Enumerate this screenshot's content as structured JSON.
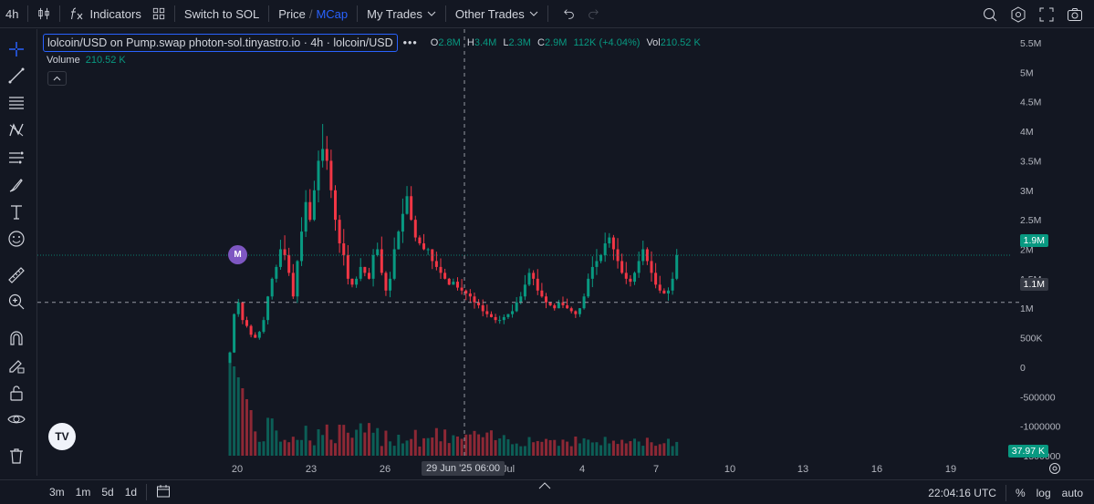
{
  "toolbar": {
    "interval": "4h",
    "indicators_label": "Indicators",
    "switch_label": "Switch to SOL",
    "price_label": "Price",
    "price_sep": "/",
    "mcap_label": "MCap",
    "my_trades_label": "My Trades",
    "other_trades_label": "Other Trades"
  },
  "legend": {
    "title": "lolcoin/USD on Pump.swap photon-sol.tinyastro.io · 4h · lolcoin/USD",
    "more": "•••",
    "o_label": "O",
    "o_value": "2.8M",
    "h_label": "H",
    "h_value": "3.4M",
    "l_label": "L",
    "l_value": "2.3M",
    "c_label": "C",
    "c_value": "2.9M",
    "change": "112K (+4.04%)",
    "vol_label": "Vol",
    "vol_value": "210.52 K"
  },
  "volume_legend": {
    "label": "Volume",
    "value": "210.52 K"
  },
  "markers": {
    "m": "M"
  },
  "logo_text": "TV",
  "badges": {
    "last_price": "1.9M",
    "crosshair_price": "1.1M",
    "volume": "37.97 K"
  },
  "crosshair_date": "29 Jun '25   06:00",
  "bottom": {
    "ranges": [
      "3m",
      "1m",
      "5d",
      "1d"
    ],
    "time": "22:04:16 UTC",
    "percent": "%",
    "log": "log",
    "auto": "auto"
  },
  "colors": {
    "up": "#089981",
    "down": "#f23645",
    "accent": "#2962ff",
    "bg": "#131722"
  },
  "chart_data": {
    "type": "candlestick",
    "title": "lolcoin/USD",
    "interval": "4h",
    "y_ticks": [
      "5.5M",
      "5M",
      "4.5M",
      "4M",
      "3.5M",
      "3M",
      "2.5M",
      "2M",
      "1.5M",
      "1M",
      "500K",
      "0",
      "-500000",
      "-1000000",
      "-1500000"
    ],
    "y_tick_values": [
      5500000,
      5000000,
      4500000,
      4000000,
      3500000,
      3000000,
      2500000,
      2000000,
      1500000,
      1000000,
      500000,
      0,
      -500000,
      -1000000,
      -1500000
    ],
    "x_ticks": [
      "20",
      "23",
      "26",
      "Jul",
      "4",
      "7",
      "10",
      "13",
      "16",
      "19"
    ],
    "last_price": 1900000,
    "crosshair_price": 1100000,
    "series_close_approx": [
      0.25,
      0.9,
      1.1,
      0.8,
      0.7,
      0.55,
      0.5,
      0.6,
      0.8,
      1.2,
      1.5,
      1.7,
      2.0,
      1.9,
      1.6,
      1.2,
      1.8,
      2.3,
      2.8,
      2.5,
      3.0,
      3.5,
      3.7,
      3.5,
      3.0,
      2.5,
      2.1,
      1.9,
      1.5,
      1.4,
      1.5,
      1.7,
      1.6,
      1.5,
      1.9,
      2.0,
      1.6,
      1.3,
      1.5,
      2.0,
      2.3,
      2.6,
      2.9,
      2.5,
      2.2,
      2.1,
      2.0,
      2.0,
      1.8,
      1.7,
      1.6,
      1.5,
      1.4,
      1.45,
      1.35,
      1.3,
      1.25,
      1.2,
      1.1,
      1.05,
      0.95,
      0.9,
      0.85,
      0.8,
      0.8,
      0.85,
      0.9,
      0.95,
      1.1,
      1.2,
      1.4,
      1.6,
      1.5,
      1.3,
      1.2,
      1.1,
      1.05,
      1.0,
      1.1,
      1.05,
      1.0,
      0.95,
      0.9,
      1.0,
      1.2,
      1.5,
      1.7,
      1.8,
      1.9,
      2.1,
      2.2,
      2.0,
      1.8,
      1.6,
      1.5,
      1.45,
      1.6,
      1.8,
      2.0,
      1.8,
      1.6,
      1.4,
      1.3,
      1.25,
      1.3,
      1.5,
      1.9
    ],
    "close_units": "millions USD (approximate)"
  }
}
